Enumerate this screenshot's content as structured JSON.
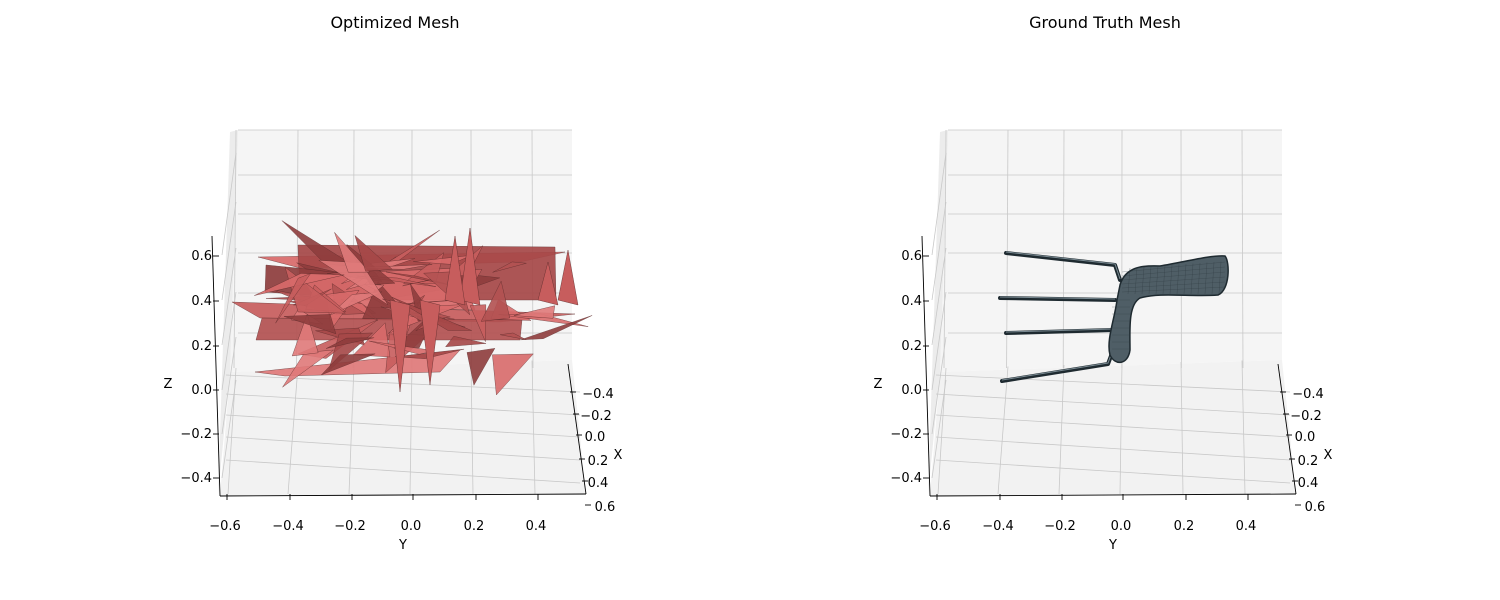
{
  "chart_data": [
    {
      "type": "3d-mesh",
      "title": "Optimized Mesh",
      "xlabel": "X",
      "ylabel": "Y",
      "zlabel": "Z",
      "x_ticks": [
        "−0.4",
        "−0.2",
        "0.0",
        "0.2",
        "0.4",
        "0.6"
      ],
      "y_ticks": [
        "−0.6",
        "−0.4",
        "−0.2",
        "0.0",
        "0.2",
        "0.4"
      ],
      "z_ticks": [
        "−0.4",
        "−0.2",
        "0.0",
        "0.2",
        "0.4",
        "0.6"
      ],
      "xlim": [
        -0.5,
        0.6
      ],
      "ylim": [
        -0.6,
        0.5
      ],
      "zlim": [
        -0.45,
        0.7
      ],
      "grid": true,
      "mesh_color": "#d96b6b",
      "mesh_edge_color": "#5a2a2a"
    },
    {
      "type": "3d-mesh",
      "title": "Ground Truth Mesh",
      "xlabel": "X",
      "ylabel": "Y",
      "zlabel": "Z",
      "x_ticks": [
        "−0.4",
        "−0.2",
        "0.0",
        "0.2",
        "0.4",
        "0.6"
      ],
      "y_ticks": [
        "−0.6",
        "−0.4",
        "−0.2",
        "0.0",
        "0.2",
        "0.4"
      ],
      "z_ticks": [
        "−0.4",
        "−0.2",
        "0.0",
        "0.2",
        "0.4",
        "0.6"
      ],
      "xlim": [
        -0.5,
        0.6
      ],
      "ylim": [
        -0.6,
        0.5
      ],
      "zlim": [
        -0.45,
        0.7
      ],
      "grid": true,
      "mesh_color": "#4f5e66",
      "mesh_edge_color": "#1e2a30"
    }
  ]
}
